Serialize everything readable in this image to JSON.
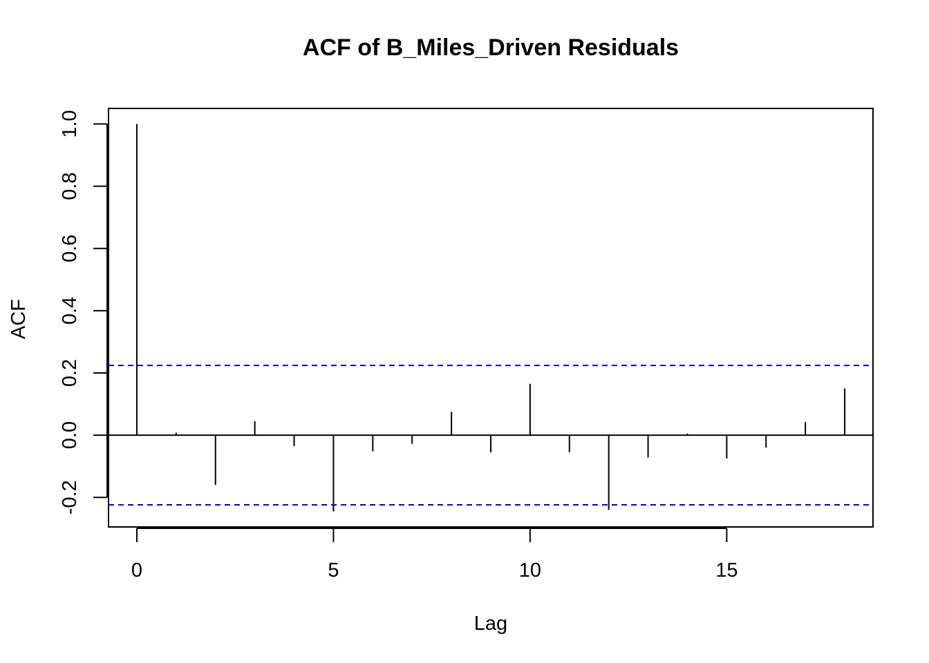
{
  "chart_data": {
    "type": "bar",
    "title": "ACF of B_Miles_Driven Residuals",
    "xlabel": "Lag",
    "ylabel": "ACF",
    "x": [
      0,
      1,
      2,
      3,
      4,
      5,
      6,
      7,
      8,
      9,
      10,
      11,
      12,
      13,
      14,
      15,
      16,
      17,
      18
    ],
    "values": [
      1.0,
      0.008,
      -0.16,
      0.045,
      -0.035,
      -0.245,
      -0.052,
      -0.028,
      0.075,
      -0.055,
      0.165,
      -0.055,
      -0.24,
      -0.072,
      0.005,
      -0.075,
      -0.04,
      0.042,
      0.15
    ],
    "confidence_bound": 0.224,
    "xlim": [
      -0.72,
      18.72
    ],
    "ylim": [
      -0.295,
      1.05
    ],
    "x_ticks": [
      "0",
      "5",
      "10",
      "15"
    ],
    "y_ticks": [
      "-0.2",
      "0.0",
      "0.2",
      "0.4",
      "0.6",
      "0.8",
      "1.0"
    ],
    "colors": {
      "bars": "#000000",
      "zero_line": "#000000",
      "confidence": "#0000CC"
    },
    "grid": false,
    "legend": "none"
  }
}
